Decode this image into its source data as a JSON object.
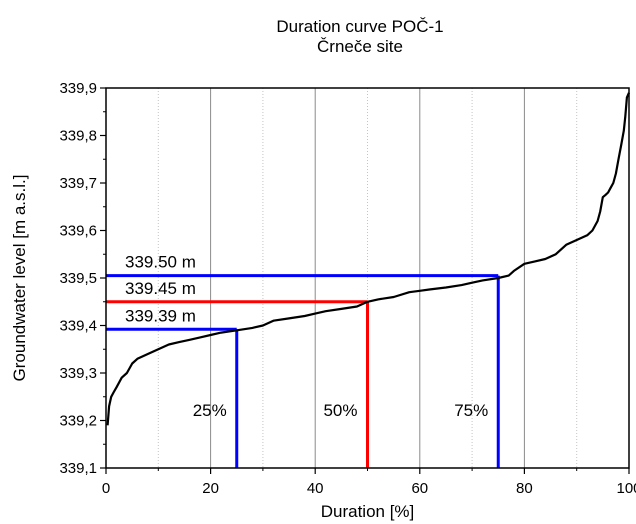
{
  "chart_data": {
    "type": "line",
    "title": "Duration curve POČ-1",
    "subtitle": "Črneče site",
    "xlabel": "Duration [%]",
    "ylabel": "Groundwater level [m a.s.l.]",
    "xlim": [
      0,
      100
    ],
    "ylim": [
      339.1,
      339.9
    ],
    "xticks": [
      0,
      20,
      40,
      60,
      80,
      100
    ],
    "xtick_labels": [
      "0",
      "20",
      "40",
      "60",
      "80",
      "100"
    ],
    "yticks": [
      339.1,
      339.2,
      339.3,
      339.4,
      339.5,
      339.6,
      339.7,
      339.8,
      339.9
    ],
    "ytick_labels": [
      "339,1",
      "339,2",
      "339,3",
      "339,4",
      "339,5",
      "339,6",
      "339,7",
      "339,8",
      "339,9"
    ],
    "grid": "vertical",
    "series": [
      {
        "color": "#000000",
        "x": [
          0.3,
          0.6,
          1,
          1.5,
          2,
          3,
          4,
          5,
          6,
          8,
          10,
          12,
          14,
          16,
          18,
          20,
          22,
          25,
          28,
          30,
          32,
          35,
          38,
          40,
          42,
          45,
          48,
          50,
          52,
          55,
          58,
          60,
          62,
          65,
          68,
          70,
          72,
          75,
          77,
          78,
          80,
          82,
          84,
          86,
          88,
          90,
          92,
          93,
          94,
          94.5,
          95,
          95.5,
          96,
          96.5,
          97,
          97.5,
          98,
          98.5,
          99,
          99.3,
          99.6,
          100
        ],
        "values": [
          339.19,
          339.23,
          339.25,
          339.26,
          339.27,
          339.29,
          339.3,
          339.32,
          339.33,
          339.34,
          339.35,
          339.36,
          339.365,
          339.37,
          339.375,
          339.38,
          339.385,
          339.39,
          339.395,
          339.4,
          339.41,
          339.415,
          339.42,
          339.425,
          339.43,
          339.435,
          339.44,
          339.45,
          339.455,
          339.46,
          339.47,
          339.473,
          339.476,
          339.48,
          339.485,
          339.49,
          339.495,
          339.5,
          339.505,
          339.515,
          339.53,
          339.535,
          339.54,
          339.55,
          339.57,
          339.58,
          339.59,
          339.6,
          339.62,
          339.64,
          339.67,
          339.675,
          339.68,
          339.69,
          339.7,
          339.72,
          339.75,
          339.78,
          339.81,
          339.84,
          339.88,
          339.89
        ]
      }
    ],
    "annotations": [
      {
        "label": "339.50 m",
        "level": 339.505,
        "percent": 75,
        "color": "#0000ff",
        "percent_label": "75%"
      },
      {
        "label": "339.45 m",
        "level": 339.45,
        "percent": 50,
        "color": "#ff0000",
        "percent_label": "50%"
      },
      {
        "label": "339.39 m",
        "level": 339.392,
        "percent": 25,
        "color": "#0000ff",
        "percent_label": "25%"
      }
    ]
  }
}
